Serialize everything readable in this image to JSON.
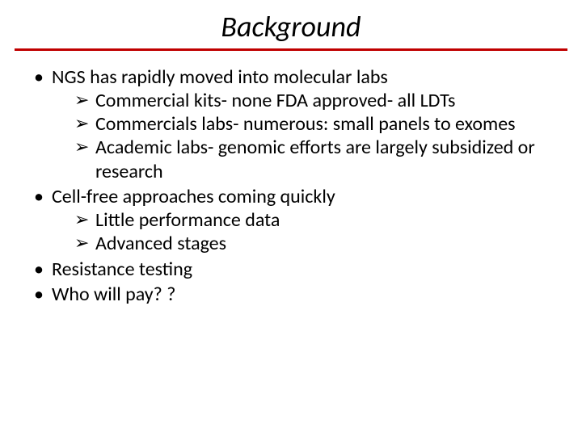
{
  "title": "Background",
  "rule_color": "#c00000",
  "text_color": "#000000",
  "background_color": "#ffffff",
  "font_family": "Calibri",
  "title_fontsize_pt": 36,
  "body_fontsize_pt": 24,
  "bullets": [
    {
      "text": "NGS has rapidly moved into molecular labs",
      "sub": [
        "Commercial kits- none FDA approved- all LDTs",
        "Commercials labs- numerous: small panels to exomes",
        "Academic labs- genomic efforts are largely subsidized or research"
      ]
    },
    {
      "text": "Cell-free approaches coming quickly",
      "sub": [
        "Little performance data",
        "Advanced stages"
      ]
    },
    {
      "text": "Resistance testing",
      "sub": []
    },
    {
      "text": "Who will pay? ?",
      "sub": []
    }
  ]
}
